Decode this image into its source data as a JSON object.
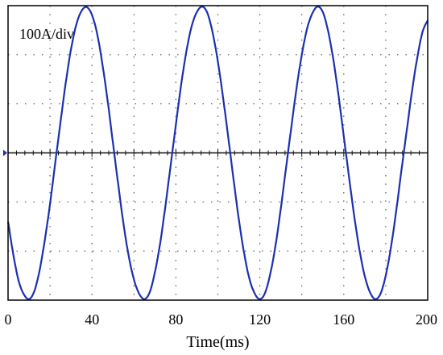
{
  "chart_data": {
    "type": "line",
    "scale_label": "100A/div",
    "xlabel": "Time(ms)",
    "ylabel": "",
    "xlim": [
      0,
      200
    ],
    "ylim": [
      -300,
      300
    ],
    "xticks": [
      0,
      40,
      80,
      120,
      160,
      200
    ],
    "x_divisions": 10,
    "y_divisions": 6,
    "grid": "dotted",
    "colors": {
      "trace": "#1c2fb0",
      "axis": "#000000",
      "grid": "#555555",
      "zero_line": "#111111"
    },
    "series": [
      {
        "x": [
          0,
          2.5,
          5,
          7.5,
          10,
          12.5,
          15,
          17.5,
          20,
          22.5,
          25,
          27.5,
          30,
          32.5,
          35,
          37.5,
          40,
          42.5,
          45,
          47.5,
          50,
          52.5,
          55,
          57.5,
          60,
          62.5,
          65,
          67.5,
          70,
          72.5,
          75,
          77.5,
          80,
          82.5,
          85,
          87.5,
          90,
          92.5,
          95,
          97.5,
          100,
          102.5,
          105,
          107.5,
          110,
          112.5,
          115,
          117.5,
          120,
          122.5,
          125,
          127.5,
          130,
          132.5,
          135,
          137.5,
          140,
          142.5,
          145,
          147.5,
          150,
          152.5,
          155,
          157.5,
          160,
          162.5,
          165,
          167.5,
          170,
          172.5,
          175,
          177.5,
          180,
          182.5,
          185,
          187.5,
          190,
          192.5,
          195,
          197.5,
          200
        ],
        "y": [
          -140,
          -207,
          -260,
          -288,
          -298,
          -282,
          -240,
          -178,
          -104,
          -20,
          63,
          143,
          211,
          261,
          289,
          297,
          281,
          242,
          180,
          105,
          20,
          -64,
          -144,
          -210,
          -258,
          -287,
          -298,
          -284,
          -243,
          -184,
          -108,
          -25,
          58,
          139,
          207,
          258,
          287,
          298,
          285,
          245,
          186,
          112,
          30,
          -55,
          -136,
          -204,
          -256,
          -286,
          -298,
          -285,
          -246,
          -188,
          -113,
          -30,
          52,
          132,
          200,
          253,
          284,
          298,
          287,
          249,
          191,
          117,
          34,
          -49,
          -129,
          -198,
          -251,
          -284,
          -298,
          -287,
          -250,
          -192,
          -118,
          -35,
          45,
          125,
          193,
          246,
          270
        ]
      }
    ]
  }
}
